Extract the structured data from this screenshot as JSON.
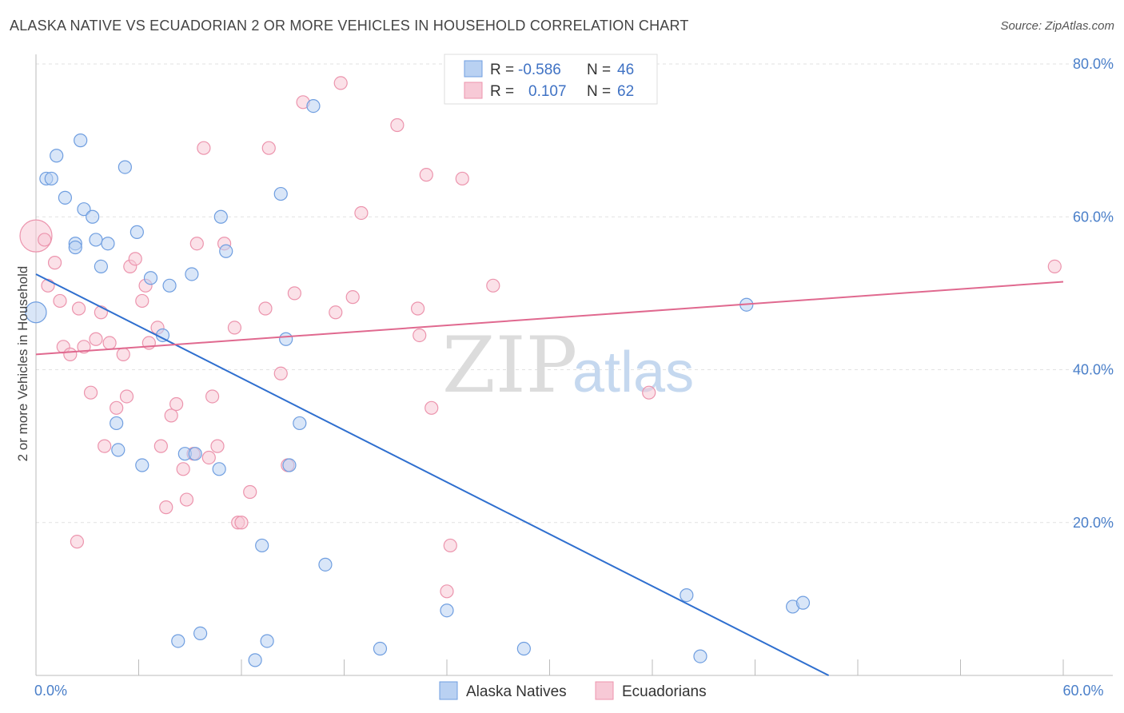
{
  "title": "ALASKA NATIVE VS ECUADORIAN 2 OR MORE VEHICLES IN HOUSEHOLD CORRELATION CHART",
  "source": "Source: ZipAtlas.com",
  "watermark": {
    "zip": "ZIP",
    "atlas": "atlas"
  },
  "legend_top": [
    {
      "r_label": "R =",
      "r_value": "-0.586",
      "n_label": "N =",
      "n_value": "46",
      "color": "#a9c6ef"
    },
    {
      "r_label": "R =",
      "r_value": "0.107",
      "n_label": "N =",
      "n_value": "62",
      "color": "#f5b5c8"
    }
  ],
  "chart_data": {
    "type": "scatter",
    "title": "ALASKA NATIVE VS ECUADORIAN 2 OR MORE VEHICLES IN HOUSEHOLD CORRELATION CHART",
    "xlabel": "",
    "ylabel": "2 or more Vehicles in Household",
    "xlim": [
      0,
      60
    ],
    "ylim": [
      0,
      82
    ],
    "x_tick_labels": [
      {
        "value": 0,
        "label": "0.0%"
      },
      {
        "value": 60,
        "label": "60.0%"
      }
    ],
    "y_tick_labels": [
      {
        "value": 20,
        "label": "20.0%"
      },
      {
        "value": 40,
        "label": "40.0%"
      },
      {
        "value": 60,
        "label": "60.0%"
      },
      {
        "value": 80,
        "label": "80.0%"
      }
    ],
    "grid": true,
    "legend_position": "top-center",
    "series": [
      {
        "name": "Alaska Natives",
        "color": "#6f9ee0",
        "fill": "#b9d1f2",
        "trend": {
          "x": [
            0,
            46.3
          ],
          "y": [
            52.5,
            0
          ],
          "color": "#2f6fcf"
        },
        "points": [
          [
            0.0,
            47.5
          ],
          [
            0.6,
            65.0
          ],
          [
            0.9,
            65.0
          ],
          [
            1.2,
            68.0
          ],
          [
            1.7,
            62.5
          ],
          [
            2.3,
            56.5
          ],
          [
            2.3,
            56.0
          ],
          [
            2.6,
            70.0
          ],
          [
            2.8,
            61.0
          ],
          [
            3.3,
            60.0
          ],
          [
            3.5,
            57.0
          ],
          [
            3.8,
            53.5
          ],
          [
            4.2,
            56.5
          ],
          [
            4.7,
            33.0
          ],
          [
            4.8,
            29.5
          ],
          [
            5.2,
            66.5
          ],
          [
            5.9,
            58.0
          ],
          [
            6.2,
            27.5
          ],
          [
            6.7,
            52.0
          ],
          [
            7.4,
            44.5
          ],
          [
            7.8,
            51.0
          ],
          [
            8.3,
            4.5
          ],
          [
            8.7,
            29.0
          ],
          [
            9.1,
            52.5
          ],
          [
            9.3,
            29.0
          ],
          [
            9.6,
            5.5
          ],
          [
            10.7,
            27.0
          ],
          [
            10.8,
            60.0
          ],
          [
            11.1,
            55.5
          ],
          [
            12.8,
            2.0
          ],
          [
            13.2,
            17.0
          ],
          [
            13.5,
            4.5
          ],
          [
            14.3,
            63.0
          ],
          [
            14.6,
            44.0
          ],
          [
            14.8,
            27.5
          ],
          [
            15.4,
            33.0
          ],
          [
            16.2,
            74.5
          ],
          [
            16.9,
            14.5
          ],
          [
            20.1,
            3.5
          ],
          [
            24.0,
            8.5
          ],
          [
            28.5,
            3.5
          ],
          [
            38.0,
            10.5
          ],
          [
            38.8,
            2.5
          ],
          [
            41.5,
            48.5
          ],
          [
            44.2,
            9.0
          ],
          [
            44.8,
            9.5
          ]
        ]
      },
      {
        "name": "Ecuadorians",
        "color": "#ec94ad",
        "fill": "#f7c9d6",
        "trend": {
          "x": [
            0,
            60
          ],
          "y": [
            42.0,
            51.5
          ],
          "color": "#e0698f"
        },
        "points": [
          [
            0.0,
            57.5
          ],
          [
            0.5,
            57.0
          ],
          [
            0.7,
            51.0
          ],
          [
            1.1,
            54.0
          ],
          [
            1.4,
            49.0
          ],
          [
            1.6,
            43.0
          ],
          [
            2.0,
            42.0
          ],
          [
            2.4,
            17.5
          ],
          [
            2.5,
            48.0
          ],
          [
            2.8,
            43.0
          ],
          [
            3.2,
            37.0
          ],
          [
            3.5,
            44.0
          ],
          [
            3.8,
            47.5
          ],
          [
            4.0,
            30.0
          ],
          [
            4.3,
            43.5
          ],
          [
            4.7,
            35.0
          ],
          [
            5.1,
            42.0
          ],
          [
            5.3,
            36.5
          ],
          [
            5.5,
            53.5
          ],
          [
            5.8,
            54.5
          ],
          [
            6.2,
            49.0
          ],
          [
            6.4,
            51.0
          ],
          [
            6.6,
            43.5
          ],
          [
            7.1,
            45.5
          ],
          [
            7.3,
            30.0
          ],
          [
            7.6,
            22.0
          ],
          [
            7.9,
            34.0
          ],
          [
            8.2,
            35.5
          ],
          [
            8.6,
            27.0
          ],
          [
            8.8,
            23.0
          ],
          [
            9.2,
            29.0
          ],
          [
            9.4,
            56.5
          ],
          [
            9.8,
            69.0
          ],
          [
            10.1,
            28.5
          ],
          [
            10.3,
            36.5
          ],
          [
            10.6,
            30.0
          ],
          [
            11.0,
            56.5
          ],
          [
            11.6,
            45.5
          ],
          [
            11.8,
            20.0
          ],
          [
            12.0,
            20.0
          ],
          [
            12.5,
            24.0
          ],
          [
            13.4,
            48.0
          ],
          [
            13.6,
            69.0
          ],
          [
            14.3,
            39.5
          ],
          [
            14.7,
            27.5
          ],
          [
            15.1,
            50.0
          ],
          [
            15.6,
            75.0
          ],
          [
            17.5,
            47.5
          ],
          [
            17.8,
            77.5
          ],
          [
            18.5,
            49.5
          ],
          [
            19.0,
            60.5
          ],
          [
            21.1,
            72.0
          ],
          [
            22.3,
            48.0
          ],
          [
            22.4,
            44.5
          ],
          [
            22.8,
            65.5
          ],
          [
            23.1,
            35.0
          ],
          [
            24.0,
            11.0
          ],
          [
            24.2,
            17.0
          ],
          [
            24.9,
            65.0
          ],
          [
            26.7,
            51.0
          ],
          [
            35.8,
            37.0
          ],
          [
            59.5,
            53.5
          ]
        ]
      }
    ]
  }
}
